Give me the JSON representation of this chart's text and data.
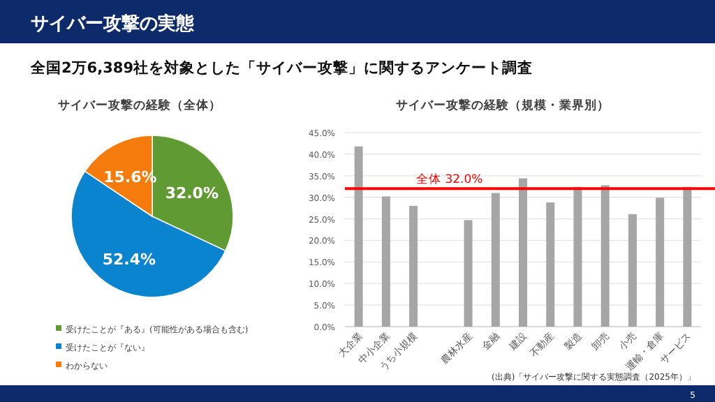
{
  "chart_data": [
    {
      "type": "other",
      "title": "サイバー攻撃の実態",
      "subtitle": "全国2万6,389社を対象とした「サイバー攻撃」に関するアンケート調査",
      "annotations": [
        "5"
      ]
    },
    {
      "type": "pie",
      "title": "サイバー攻撃の経験（全体）",
      "categories": [
        "受けたことが『ある』(可能性がある場合も含む)",
        "受けたことが『ない』",
        "わからない"
      ],
      "values": [
        32.0,
        52.4,
        15.6
      ],
      "colors": [
        "#5f9a32",
        "#0b84cf",
        "#f47b0c"
      ],
      "value_labels": [
        "32.0%",
        "52.4%",
        "15.6%"
      ],
      "legend": "bottom"
    },
    {
      "type": "bar",
      "title": "サイバー攻撃の経験（規模・業界別）",
      "categories": [
        "大企業",
        "中小企業",
        "うち小規模",
        null,
        "農林水産",
        "金融",
        "建設",
        "不動産",
        "製造",
        "卸売",
        "小売",
        "運輸・倉庫",
        "サービス"
      ],
      "values": [
        41.8,
        30.2,
        28.0,
        null,
        24.7,
        31.0,
        34.4,
        28.8,
        32.4,
        32.8,
        26.1,
        29.9,
        32.4
      ],
      "color": "#a6a6a6",
      "ylim": [
        0,
        45
      ],
      "yticks": [
        {
          "value": 0,
          "label": "0.0%"
        },
        {
          "value": 5,
          "label": "5.0%"
        },
        {
          "value": 10,
          "label": "10.0%"
        },
        {
          "value": 15,
          "label": "15.0%"
        },
        {
          "value": 20,
          "label": "20.0%"
        },
        {
          "value": 25,
          "label": "25.0%"
        },
        {
          "value": 30,
          "label": "30.0%"
        },
        {
          "value": 35,
          "label": "35.0%"
        },
        {
          "value": 40,
          "label": "40.0%"
        },
        {
          "value": 45,
          "label": "45.0%"
        }
      ],
      "grid": "y",
      "ref_lines": [
        {
          "axis": "y",
          "value": 32.0,
          "label": "全体 32.0%",
          "color": "#ff0000"
        }
      ],
      "annotations": [
        "(出典)「サイバー攻撃に関する実態調査（2025年）」"
      ]
    }
  ]
}
